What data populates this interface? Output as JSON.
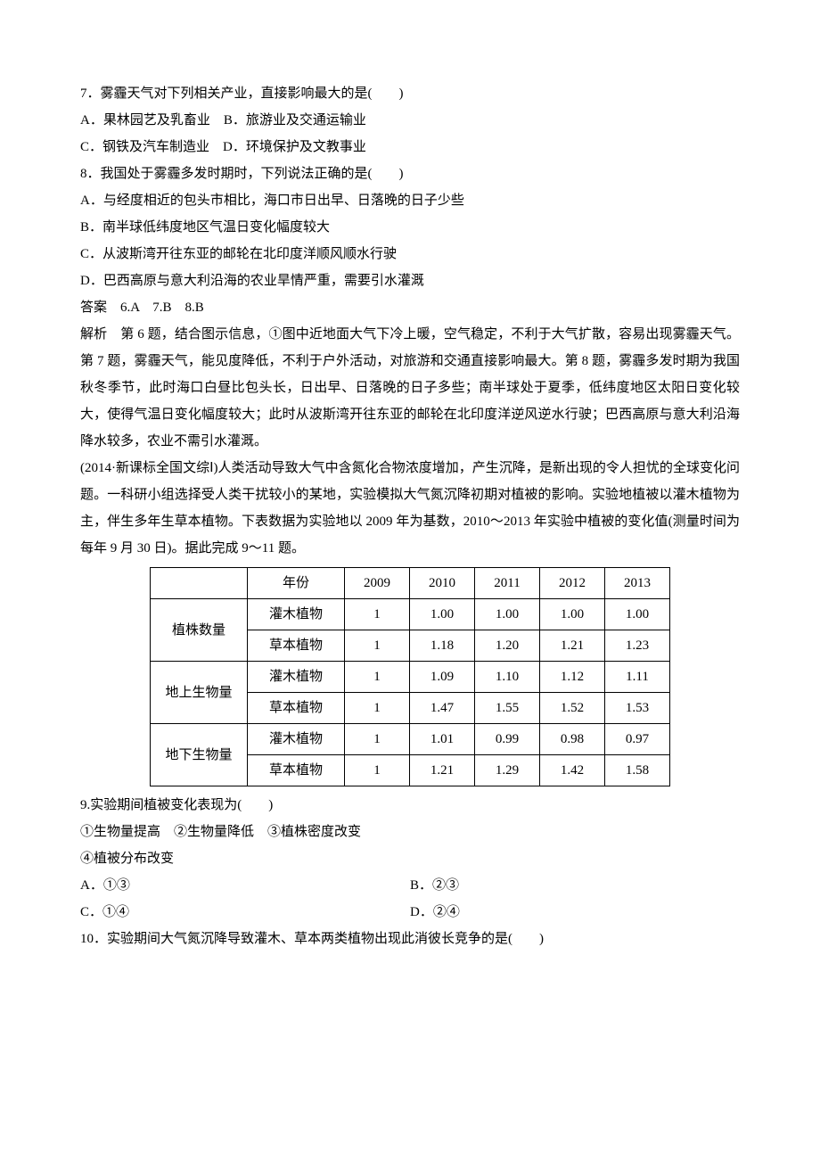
{
  "q7": {
    "stem": "7．雾霾天气对下列相关产业，直接影响最大的是(　　)",
    "A": "A．果林园艺及乳畜业　B．旅游业及交通运输业",
    "C": "C．钢铁及汽车制造业　D．环境保护及文教事业"
  },
  "q8": {
    "stem": "8．我国处于雾霾多发时期时，下列说法正确的是(　　)",
    "A": "A．与经度相近的包头市相比，海口市日出早、日落晚的日子少些",
    "B": "B．南半球低纬度地区气温日变化幅度较大",
    "C": "C．从波斯湾开往东亚的邮轮在北印度洋顺风顺水行驶",
    "D": "D．巴西高原与意大利沿海的农业旱情严重，需要引水灌溉"
  },
  "ans678": "答案　6.A　7.B　8.B",
  "exp678": "解析　第 6 题，结合图示信息，①图中近地面大气下冷上暖，空气稳定，不利于大气扩散，容易出现雾霾天气。第 7 题，雾霾天气，能见度降低，不利于户外活动，对旅游和交通直接影响最大。第 8 题，雾霾多发时期为我国秋冬季节，此时海口白昼比包头长，日出早、日落晚的日子多些；南半球处于夏季，低纬度地区太阳日变化较大，使得气温日变化幅度较大；此时从波斯湾开往东亚的邮轮在北印度洋逆风逆水行驶；巴西高原与意大利沿海降水较多，农业不需引水灌溉。",
  "intro": "(2014·新课标全国文综Ⅰ)人类活动导致大气中含氮化合物浓度增加，产生沉降，是新出现的令人担忧的全球变化问题。一科研小组选择受人类干扰较小的某地，实验模拟大气氮沉降初期对植被的影响。实验地植被以灌木植物为主，伴生多年生草本植物。下表数据为实验地以 2009 年为基数，2010～2013 年实验中植被的变化值(测量时间为每年 9 月 30 日)。据此完成 9～11 题。",
  "table": {
    "header": [
      "",
      "年份",
      "2009",
      "2010",
      "2011",
      "2012",
      "2013"
    ],
    "groups": [
      {
        "label": "植株数量",
        "rows": [
          {
            "sub": "灌木植物",
            "v": [
              "1",
              "1.00",
              "1.00",
              "1.00",
              "1.00"
            ]
          },
          {
            "sub": "草本植物",
            "v": [
              "1",
              "1.18",
              "1.20",
              "1.21",
              "1.23"
            ]
          }
        ]
      },
      {
        "label": "地上生物量",
        "rows": [
          {
            "sub": "灌木植物",
            "v": [
              "1",
              "1.09",
              "1.10",
              "1.12",
              "1.11"
            ]
          },
          {
            "sub": "草本植物",
            "v": [
              "1",
              "1.47",
              "1.55",
              "1.52",
              "1.53"
            ]
          }
        ]
      },
      {
        "label": "地下生物量",
        "rows": [
          {
            "sub": "灌木植物",
            "v": [
              "1",
              "1.01",
              "0.99",
              "0.98",
              "0.97"
            ]
          },
          {
            "sub": "草本植物",
            "v": [
              "1",
              "1.21",
              "1.29",
              "1.42",
              "1.58"
            ]
          }
        ]
      }
    ]
  },
  "q9": {
    "stem": "9.实验期间植被变化表现为(　　)",
    "opts_line": "①生物量提高　②生物量降低　③植株密度改变",
    "opts_line2": "④植被分布改变",
    "A": "A．①③",
    "B": "B．②③",
    "C": "C．①④",
    "D": "D．②④"
  },
  "q10": {
    "stem": "10．实验期间大气氮沉降导致灌木、草本两类植物出现此消彼长竞争的是(　　)"
  }
}
